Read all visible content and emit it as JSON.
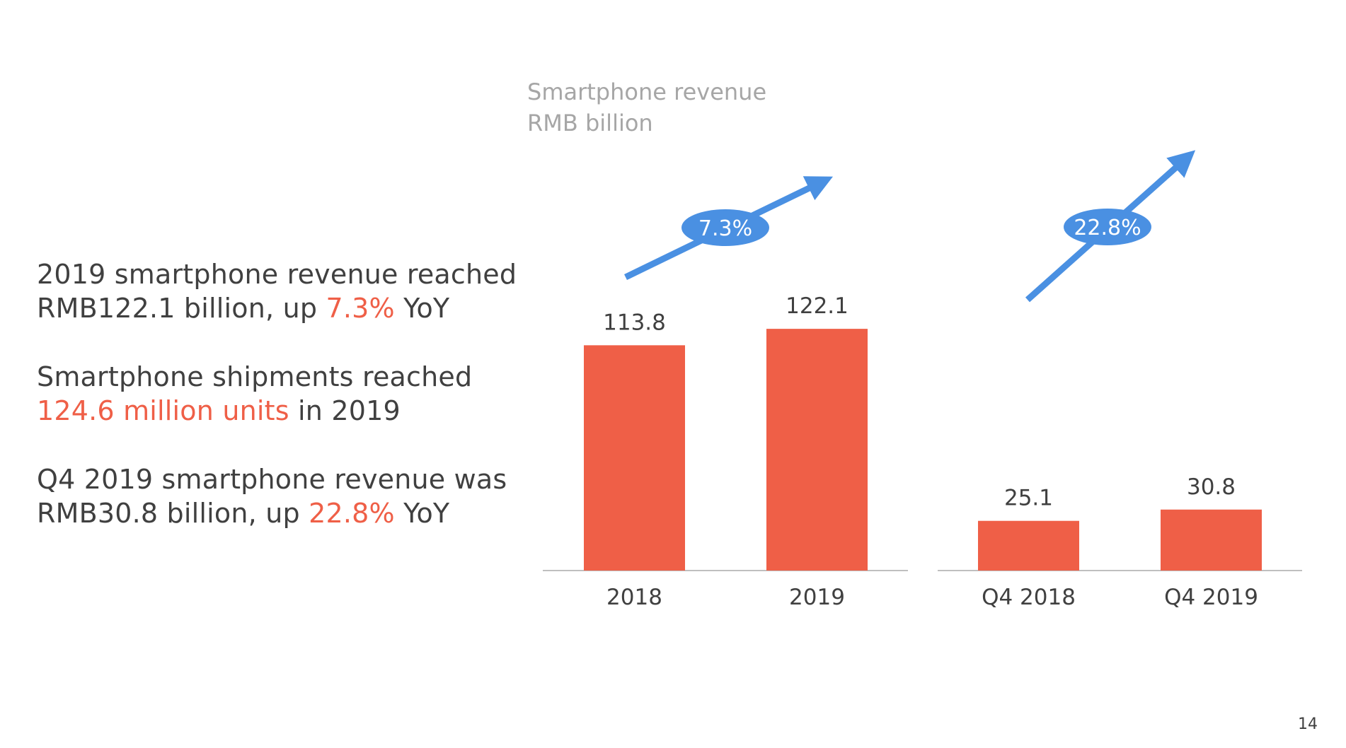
{
  "caption": {
    "line1": "Smartphone revenue",
    "line2": "RMB billion"
  },
  "bullets": [
    {
      "l1": "2019 smartphone revenue reached",
      "l2_pre": "RMB122.1 billion, up ",
      "l2_hl": "7.3%",
      "l2_post": " YoY"
    },
    {
      "l1": "Smartphone shipments reached",
      "l2_pre": "",
      "l2_hl": "124.6 million units",
      "l2_post": " in 2019"
    },
    {
      "l1": "Q4 2019 smartphone revenue was",
      "l2_pre": "RMB30.8 billion, up ",
      "l2_hl": "22.8%",
      "l2_post": " YoY"
    }
  ],
  "page_number": "14",
  "colors": {
    "bar": "#ef5f47",
    "arrow": "#4a90e2",
    "badge": "#4a90e2",
    "axis": "#bfbfbf",
    "highlight": "#ef5f47"
  },
  "chart_data": [
    {
      "type": "bar",
      "categories": [
        "2018",
        "2019"
      ],
      "values": [
        113.8,
        122.1
      ],
      "value_labels": [
        "113.8",
        "122.1"
      ],
      "growth_label": "7.3%"
    },
    {
      "type": "bar",
      "categories": [
        "Q4 2018",
        "Q4 2019"
      ],
      "values": [
        25.1,
        30.8
      ],
      "value_labels": [
        "25.1",
        "30.8"
      ],
      "growth_label": "22.8%"
    }
  ]
}
